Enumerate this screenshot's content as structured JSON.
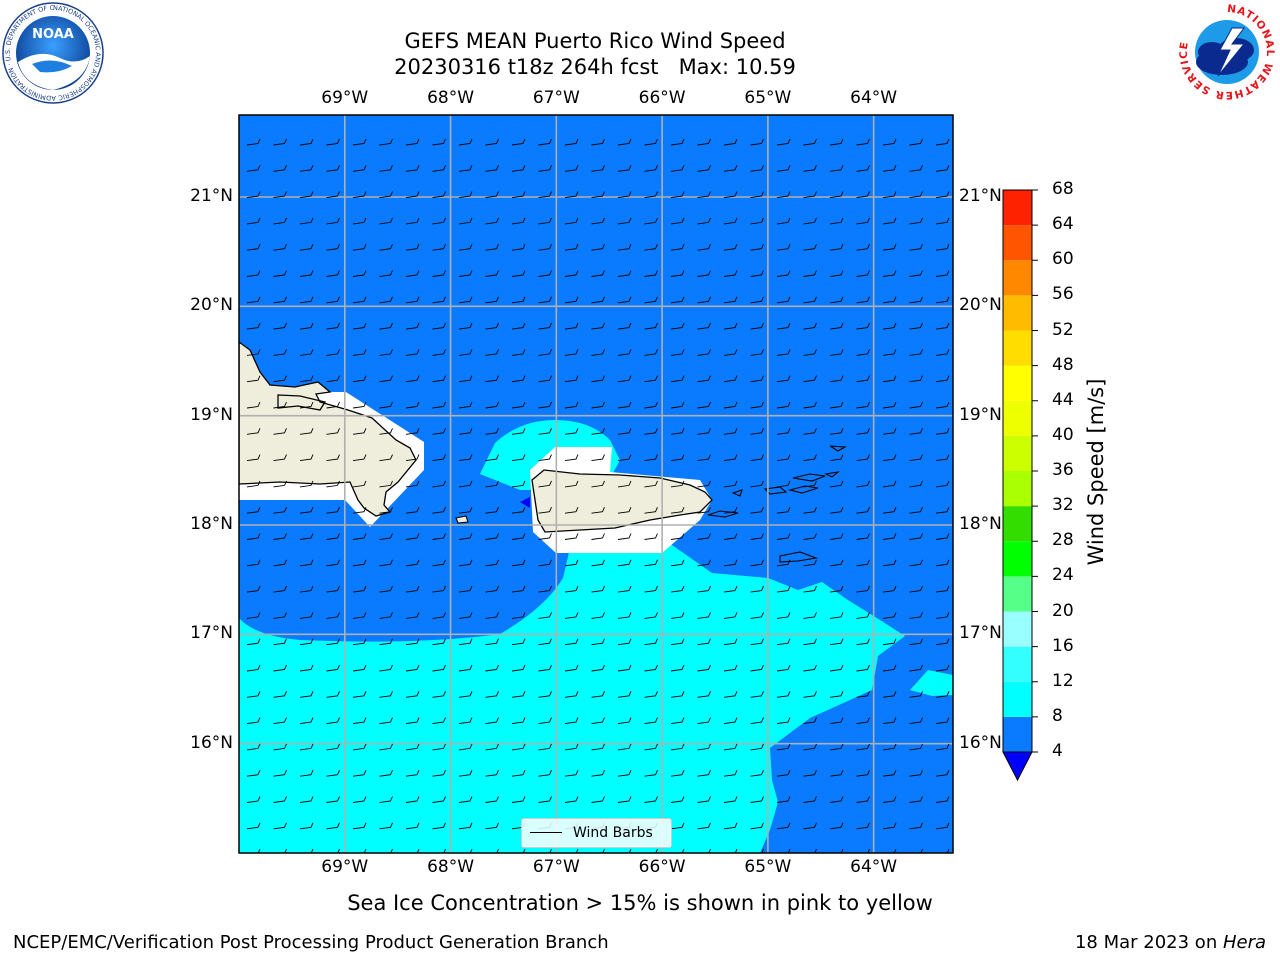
{
  "header": {
    "title_line1": "GEFS MEAN Puerto Rico Wind Speed",
    "title_line2": "20230316 t18z 264h fcst   Max: 10.59"
  },
  "logos": {
    "noaa_text": "NOAA",
    "noaa_ring_text": "NATIONAL OCEANIC AND ATMOSPHERIC ADMINISTRATION · U.S. DEPARTMENT OF COMMERCE",
    "nws_ring_text": "NATIONAL WEATHER SERVICE"
  },
  "map": {
    "lon_ticks": [
      "69°W",
      "68°W",
      "67°W",
      "66°W",
      "65°W",
      "64°W"
    ],
    "lat_ticks": [
      "21°N",
      "20°N",
      "19°N",
      "18°N",
      "17°N",
      "16°N"
    ],
    "lon_values": [
      -69,
      -68,
      -67,
      -66,
      -65,
      -64
    ],
    "lat_values": [
      21,
      20,
      19,
      18,
      17,
      16
    ],
    "extent": {
      "lon": [
        -70,
        -63.25
      ],
      "lat": [
        15,
        21.75
      ]
    },
    "colors": {
      "ocean_low": "#0a7aff",
      "ocean_mid": "#00ffff",
      "land": "#efeedd",
      "min_spot": "#0000ff"
    },
    "legend_label": "Wind Barbs"
  },
  "colorbar": {
    "title": "Wind Speed [m/s]",
    "levels": [
      4,
      8,
      12,
      16,
      20,
      24,
      28,
      32,
      36,
      40,
      44,
      48,
      52,
      56,
      60,
      64,
      68
    ],
    "level_labels": [
      "4",
      "8",
      "12",
      "16",
      "20",
      "24",
      "28",
      "32",
      "36",
      "40",
      "44",
      "48",
      "52",
      "56",
      "60",
      "64",
      "68"
    ],
    "colors": [
      "#0a7aff",
      "#00ffff",
      "#33ffff",
      "#99ffff",
      "#55ff88",
      "#00ff00",
      "#33dd00",
      "#aaff00",
      "#ccff00",
      "#eeff00",
      "#ffff00",
      "#ffdd00",
      "#ffbb00",
      "#ff8800",
      "#ff5500",
      "#ff2200"
    ],
    "under_color": "#0000ff",
    "extend": "min"
  },
  "footer": {
    "caption": "Sea Ice Concentration > 15% is shown in pink to yellow",
    "left": "NCEP/EMC/Verification Post Processing Product Generation Branch",
    "right_date": "18 Mar 2023 on ",
    "right_machine": "Hera"
  }
}
